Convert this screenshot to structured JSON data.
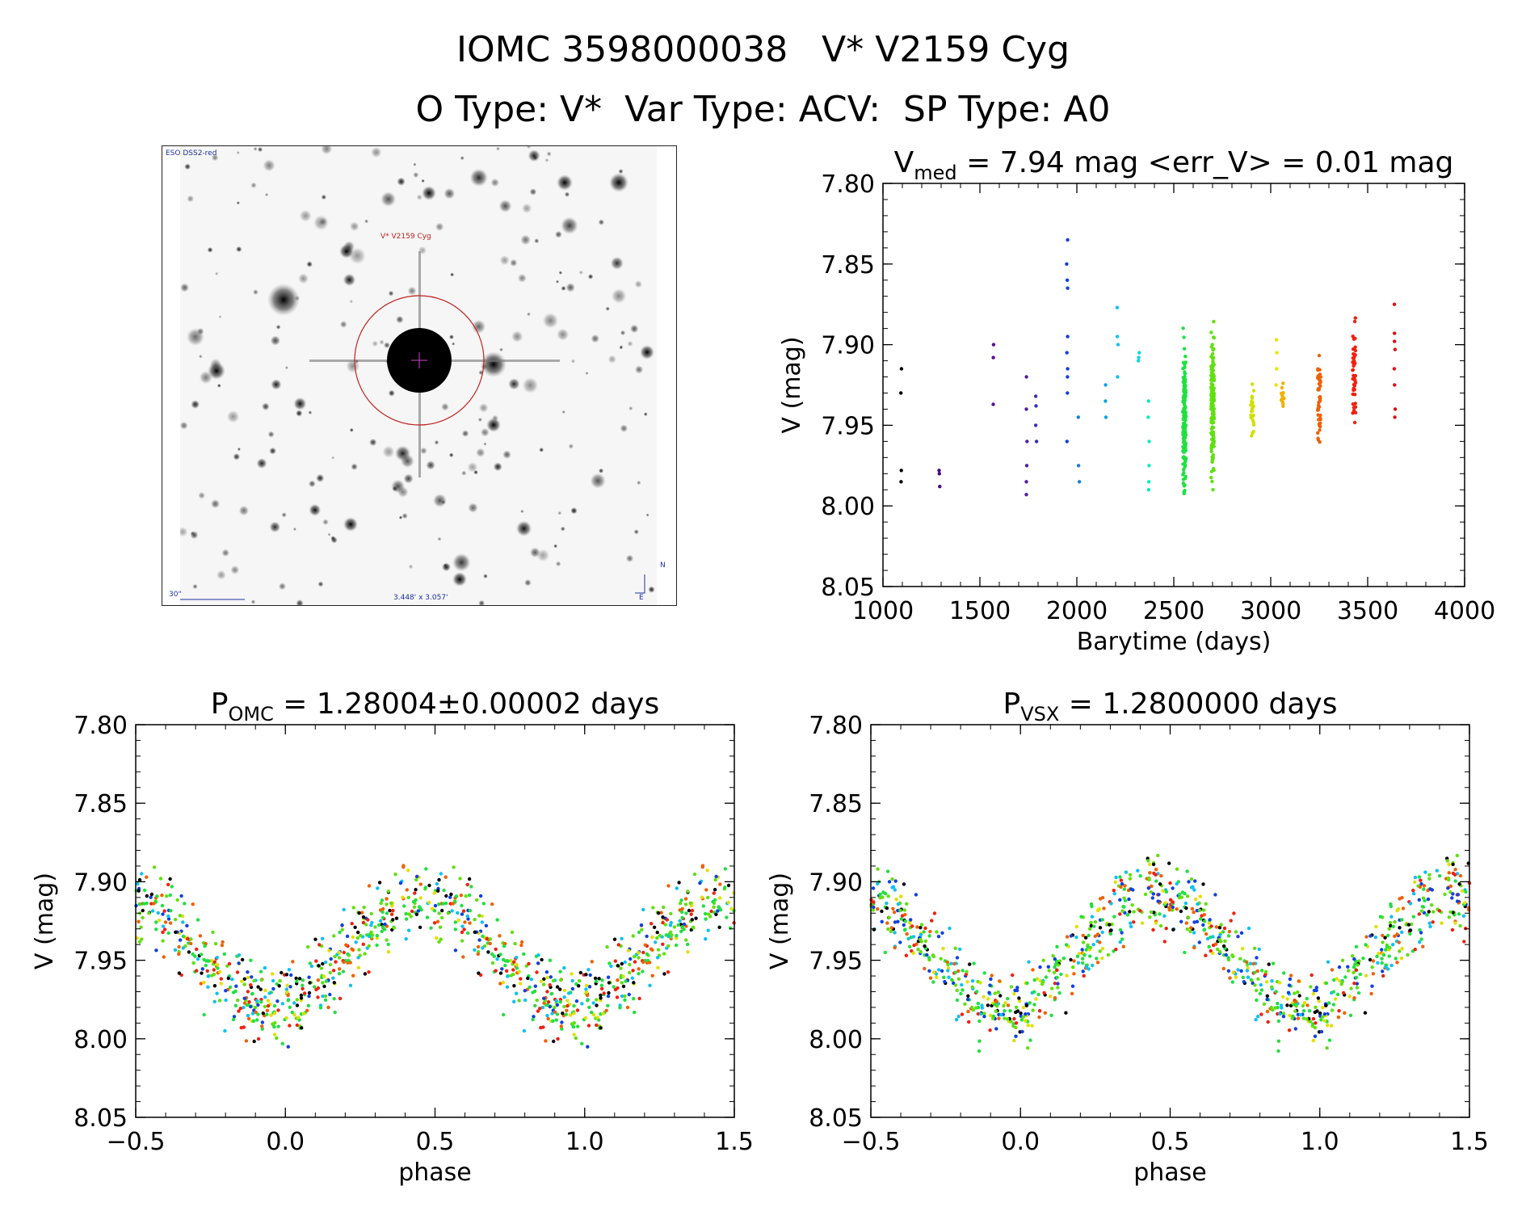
{
  "header": {
    "title_line1": "IOMC 3598000038   V* V2159 Cyg",
    "title_line2": "O Type: V*  Var Type: ACV:  SP Type: A0"
  },
  "image_panel": {
    "survey_label": "ESO DSS2-red",
    "target_label": "V* V2159 Cyg",
    "scale_label": "30\"",
    "fov_label": "3.448' x 3.057'",
    "north_label": "N",
    "east_label": "E"
  },
  "chart_data": [
    {
      "type": "scatter",
      "panel": "lightcurve",
      "title_main": "V",
      "title_sub": "med",
      "title_rest": " = 7.94 mag <err_V> = 0.01 mag",
      "xlabel": "Barytime (days)",
      "ylabel": "V (mag)",
      "xlim": [
        1000,
        4000
      ],
      "ylim": [
        7.8,
        8.05
      ],
      "y_inverted": true,
      "xticks": [
        "1000",
        "1500",
        "2000",
        "2500",
        "3000",
        "3500",
        "4000"
      ],
      "yticks": [
        "7.80",
        "7.85",
        "7.90",
        "7.95",
        "8.00",
        "8.05"
      ],
      "groups": [
        {
          "x": 1095,
          "y": [
            7.915,
            7.93,
            7.978,
            7.985
          ],
          "color": "#000000"
        },
        {
          "x": 1290,
          "y": [
            7.978,
            7.98,
            7.988
          ],
          "color": "#4b0082"
        },
        {
          "x": 1570,
          "y": [
            7.9,
            7.908,
            7.937
          ],
          "color": "#5a1090"
        },
        {
          "x": 1740,
          "y": [
            7.92,
            7.94,
            7.96,
            7.975,
            7.985,
            7.993
          ],
          "color": "#5020a0"
        },
        {
          "x": 1790,
          "y": [
            7.932,
            7.938,
            7.95,
            7.96
          ],
          "color": "#3030c0"
        },
        {
          "x": 1950,
          "y": [
            7.835,
            7.85,
            7.86,
            7.865,
            7.895,
            7.905,
            7.915,
            7.92,
            7.93,
            7.96
          ],
          "color": "#1040e0"
        },
        {
          "x": 2010,
          "y": [
            7.945,
            7.975,
            7.985
          ],
          "color": "#1080e0"
        },
        {
          "x": 2150,
          "y": [
            7.925,
            7.935,
            7.945
          ],
          "color": "#10a0e0"
        },
        {
          "x": 2210,
          "y": [
            7.877,
            7.895,
            7.9,
            7.92
          ],
          "color": "#10c0f0"
        },
        {
          "x": 2320,
          "y": [
            7.905,
            7.908,
            7.91
          ],
          "color": "#10d8e0"
        },
        {
          "x": 2370,
          "y": [
            7.935,
            7.945,
            7.96,
            7.975,
            7.985,
            7.99
          ],
          "color": "#10e8c0"
        },
        {
          "x": 2555,
          "y_range": [
            7.872,
            8.026
          ],
          "n": 170,
          "color": "#20e040"
        },
        {
          "x": 2700,
          "y_range": [
            7.855,
            8.012
          ],
          "n": 160,
          "color": "#60e010"
        },
        {
          "x": 2905,
          "y_range": [
            7.91,
            7.975
          ],
          "n": 25,
          "color": "#d0e000"
        },
        {
          "x": 3030,
          "y": [
            7.897,
            7.905,
            7.915,
            7.925
          ],
          "color": "#f0e000"
        },
        {
          "x": 3060,
          "y_range": [
            7.915,
            7.95
          ],
          "n": 12,
          "color": "#f0b000"
        },
        {
          "x": 3250,
          "y_range": [
            7.888,
            7.986
          ],
          "n": 45,
          "color": "#f06000"
        },
        {
          "x": 3430,
          "y_range": [
            7.86,
            7.975
          ],
          "n": 45,
          "color": "#f02010"
        },
        {
          "x": 3640,
          "y": [
            7.875,
            7.893,
            7.898,
            7.903,
            7.915,
            7.925,
            7.94,
            7.945
          ],
          "color": "#e01010"
        }
      ]
    },
    {
      "type": "scatter",
      "panel": "phase_omc",
      "title_main": "P",
      "title_sub": "OMC",
      "title_rest": " = 1.28004±0.00002 days",
      "period_days": 1.28004,
      "xlabel": "phase",
      "ylabel": "V (mag)",
      "xlim": [
        -0.5,
        1.5
      ],
      "ylim": [
        7.8,
        8.05
      ],
      "y_inverted": true,
      "xticks": [
        "−0.5",
        "0.0",
        "0.5",
        "1.0",
        "1.5"
      ],
      "yticks": [
        "7.80",
        "7.85",
        "7.90",
        "7.95",
        "8.00",
        "8.05"
      ],
      "curve": {
        "mean": 7.945,
        "amplitude": 0.035,
        "max_phase": 0.45,
        "scatter": 0.025
      },
      "colors": [
        "#20e040",
        "#60e010",
        "#20e040",
        "#60e010",
        "#10c0f0",
        "#f06000",
        "#f02010",
        "#e0e000",
        "#1040e0",
        "#000000"
      ]
    },
    {
      "type": "scatter",
      "panel": "phase_vsx",
      "title_main": "P",
      "title_sub": "VSX",
      "title_rest": " = 1.2800000 days",
      "period_days": 1.28,
      "xlabel": "phase",
      "ylabel": "V (mag)",
      "xlim": [
        -0.5,
        1.5
      ],
      "ylim": [
        7.8,
        8.05
      ],
      "y_inverted": true,
      "xticks": [
        "−0.5",
        "0.0",
        "0.5",
        "1.0",
        "1.5"
      ],
      "yticks": [
        "7.80",
        "7.85",
        "7.90",
        "7.95",
        "8.00",
        "8.05"
      ],
      "curve": {
        "mean": 7.945,
        "amplitude": 0.035,
        "max_phase": 0.45,
        "scatter": 0.025
      },
      "colors": [
        "#20e040",
        "#60e010",
        "#20e040",
        "#60e010",
        "#10c0f0",
        "#f06000",
        "#f02010",
        "#e0e000",
        "#1040e0",
        "#000000"
      ]
    }
  ]
}
